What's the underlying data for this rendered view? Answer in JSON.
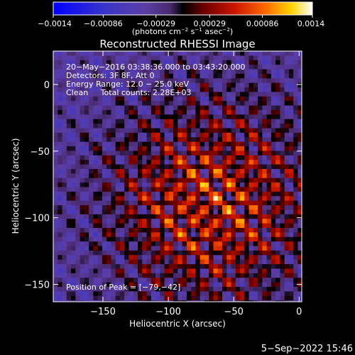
{
  "chart_data": {
    "type": "heatmap",
    "title": "Reconstructed RHESSI Image",
    "xlabel": "Heliocentric X (arcsec)",
    "ylabel": "Heliocentric Y (arcsec)",
    "xlim": [
      -188,
      2
    ],
    "ylim": [
      -163,
      25
    ],
    "x_ticks": [
      {
        "value": -150,
        "label": "−150"
      },
      {
        "value": -100,
        "label": "−100"
      },
      {
        "value": -50,
        "label": "−50"
      },
      {
        "value": 0,
        "label": "0"
      }
    ],
    "y_ticks": [
      {
        "value": 0,
        "label": "0"
      },
      {
        "value": -50,
        "label": "−50"
      },
      {
        "value": -100,
        "label": "−100"
      },
      {
        "value": -150,
        "label": "−150"
      }
    ],
    "colorbar": {
      "range": [
        -0.0014,
        0.0014
      ],
      "ticks": [
        {
          "value": -0.0014,
          "label": "−0.0014"
        },
        {
          "value": -0.00086,
          "label": "−0.00086"
        },
        {
          "value": -0.00029,
          "label": "−0.00029"
        },
        {
          "value": 0.00029,
          "label": "0.00029"
        },
        {
          "value": 0.00086,
          "label": "0.00086"
        },
        {
          "value": 0.0014,
          "label": "0.0014"
        }
      ],
      "unit_main": "(photons cm",
      "unit_exp1": "−2",
      "unit_mid": " s",
      "unit_exp2": "−1",
      "unit_end": " asec",
      "unit_exp3": "−2",
      "unit_close": ")"
    },
    "annotations": [
      "20−May−2016 03:38:36.000 to 03:43:20.000",
      "Detectors: 3F 8F, Att 0",
      "Energy Range: 12.0 − 25.0 keV",
      "Clean     Total counts: 2.28E+03"
    ],
    "peak_label": "Position of Peak = [−79,−42]",
    "peak": [
      -79,
      -42
    ]
  },
  "footer": {
    "date": "5−Sep−2022 15:46"
  },
  "colors": {
    "background": "#000000",
    "foreground": "#ffffff"
  }
}
